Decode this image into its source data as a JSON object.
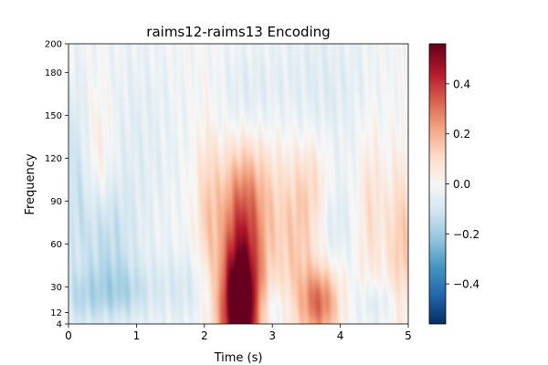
{
  "chart_data": {
    "type": "heatmap",
    "title": "raims12-raims13 Encoding",
    "xlabel": "Time (s)",
    "ylabel": "Frequency",
    "xlim": [
      0,
      5
    ],
    "ylim": [
      4,
      200
    ],
    "x_ticks": [
      0,
      1,
      2,
      3,
      4,
      5
    ],
    "y_ticks": [
      4,
      12,
      30,
      60,
      90,
      120,
      150,
      180,
      200
    ],
    "colorbar": {
      "colormap": "RdBu_r",
      "vmin": -0.56,
      "vmax": 0.56,
      "ticks": [
        -0.4,
        -0.2,
        0.0,
        0.2,
        0.4
      ],
      "tick_labels": [
        "−0.4",
        "−0.2",
        "0.0",
        "0.2",
        "0.4"
      ]
    },
    "blobs": [
      {
        "t": 2.52,
        "f": 12,
        "st": 0.2,
        "sf": 28,
        "v": 0.56
      },
      {
        "t": 2.55,
        "f": 55,
        "st": 0.22,
        "sf": 45,
        "v": 0.3
      },
      {
        "t": 2.7,
        "f": 95,
        "st": 0.35,
        "sf": 40,
        "v": 0.14
      },
      {
        "t": 3.7,
        "f": 18,
        "st": 0.2,
        "sf": 18,
        "v": 0.3
      },
      {
        "t": 3.35,
        "f": 55,
        "st": 0.22,
        "sf": 40,
        "v": 0.12
      },
      {
        "t": 2.05,
        "f": 85,
        "st": 0.12,
        "sf": 40,
        "v": 0.12
      },
      {
        "t": 0.55,
        "f": 60,
        "st": 0.3,
        "sf": 30,
        "v": -0.12
      },
      {
        "t": 0.8,
        "f": 25,
        "st": 0.3,
        "sf": 15,
        "v": -0.12
      },
      {
        "t": 0.2,
        "f": 20,
        "st": 0.25,
        "sf": 15,
        "v": -0.1
      },
      {
        "t": 1.7,
        "f": 28,
        "st": 0.35,
        "sf": 18,
        "v": -0.08
      },
      {
        "t": 3.0,
        "f": 15,
        "st": 0.2,
        "sf": 12,
        "v": -0.08
      },
      {
        "t": 4.55,
        "f": 18,
        "st": 0.25,
        "sf": 12,
        "v": -0.08
      },
      {
        "t": 4.9,
        "f": 60,
        "st": 0.15,
        "sf": 40,
        "v": 0.15
      },
      {
        "t": 4.45,
        "f": 85,
        "st": 0.12,
        "sf": 40,
        "v": 0.1
      },
      {
        "t": 1.0,
        "f": 130,
        "st": 0.5,
        "sf": 60,
        "v": -0.06
      },
      {
        "t": 2.6,
        "f": 150,
        "st": 0.3,
        "sf": 30,
        "v": -0.1
      },
      {
        "t": 3.7,
        "f": 170,
        "st": 0.6,
        "sf": 40,
        "v": -0.07
      },
      {
        "t": 0.45,
        "f": 130,
        "st": 0.15,
        "sf": 30,
        "v": 0.08
      },
      {
        "t": 0.1,
        "f": 110,
        "st": 0.15,
        "sf": 50,
        "v": -0.1
      },
      {
        "t": 3.6,
        "f": 100,
        "st": 0.2,
        "sf": 25,
        "v": 0.1
      },
      {
        "t": 3.9,
        "f": 75,
        "st": 0.2,
        "sf": 25,
        "v": -0.08
      }
    ]
  }
}
